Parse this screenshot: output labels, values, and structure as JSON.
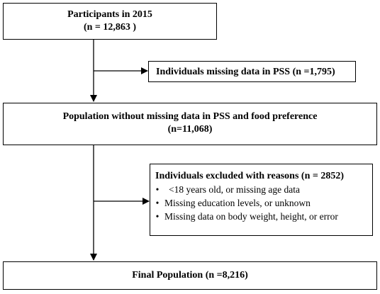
{
  "flowchart": {
    "participants": {
      "title": "Participants in 2015",
      "count": "(n = 12,863 )"
    },
    "missing_pss": {
      "text": "Individuals missing data in PSS (n =1,795)"
    },
    "population": {
      "title": "Population without missing data in PSS and food preference",
      "count": "(n=11,068)"
    },
    "excluded": {
      "title": "Individuals excluded with reasons (n = 2852)",
      "bullet": "•",
      "items": [
        "<18 years old, or missing age data",
        "Missing education levels, or unknown",
        "Missing data on body weight, height, or error"
      ]
    },
    "final": {
      "text": "Final Population (n =8,216)"
    }
  }
}
